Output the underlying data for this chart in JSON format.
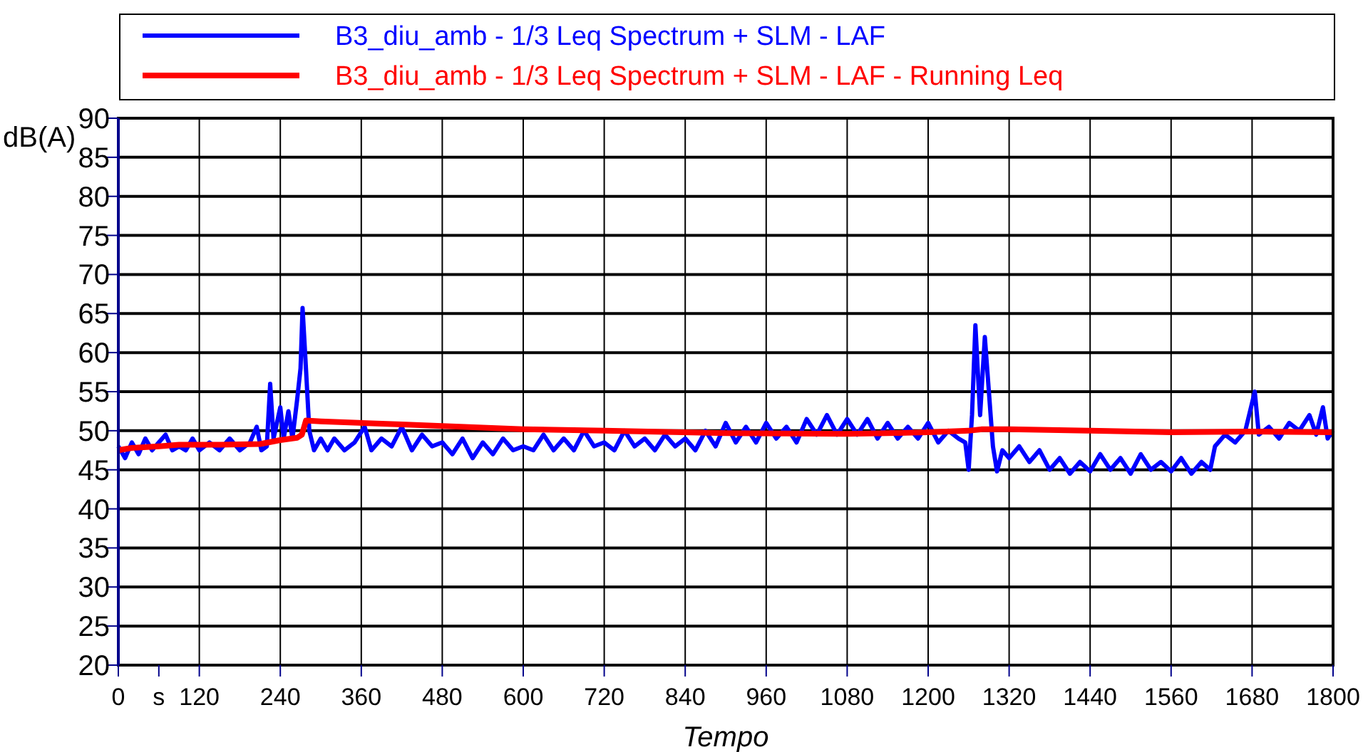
{
  "chart_data": {
    "type": "line",
    "xlabel": "Tempo",
    "ylabel": "dB(A)",
    "xlim": [
      0,
      1800
    ],
    "xticks": [
      0,
      {
        "value": 60,
        "label": "s"
      },
      120,
      240,
      360,
      480,
      600,
      720,
      840,
      960,
      1080,
      1200,
      1320,
      1440,
      1560,
      1680,
      1800
    ],
    "ylim": [
      20,
      90
    ],
    "yticks": [
      20,
      25,
      30,
      35,
      40,
      45,
      50,
      55,
      60,
      65,
      70,
      75,
      80,
      85,
      90
    ],
    "grid": true,
    "legend": "top",
    "line_style": "solid",
    "marker": "none",
    "series": [
      {
        "name": "B3_diu_amb - 1/3 Leq Spectrum + SLM - LAF",
        "color": "#0000ff",
        "x": [
          0,
          10,
          20,
          30,
          40,
          50,
          60,
          70,
          80,
          90,
          100,
          110,
          120,
          135,
          150,
          165,
          180,
          195,
          205,
          212,
          220,
          225,
          230,
          240,
          245,
          252,
          258,
          265,
          270,
          273,
          278,
          283,
          290,
          300,
          310,
          320,
          335,
          350,
          365,
          375,
          390,
          405,
          420,
          435,
          450,
          465,
          480,
          495,
          510,
          525,
          540,
          555,
          570,
          585,
          600,
          615,
          630,
          645,
          660,
          675,
          690,
          705,
          720,
          735,
          750,
          765,
          780,
          795,
          810,
          825,
          840,
          855,
          870,
          885,
          900,
          915,
          930,
          945,
          960,
          975,
          990,
          1005,
          1020,
          1035,
          1050,
          1065,
          1080,
          1095,
          1110,
          1125,
          1140,
          1155,
          1170,
          1185,
          1200,
          1215,
          1230,
          1245,
          1255,
          1260,
          1265,
          1270,
          1277,
          1284,
          1290,
          1296,
          1302,
          1310,
          1320,
          1335,
          1350,
          1365,
          1380,
          1395,
          1410,
          1425,
          1440,
          1455,
          1470,
          1485,
          1500,
          1515,
          1530,
          1545,
          1560,
          1575,
          1590,
          1605,
          1618,
          1625,
          1640,
          1655,
          1670,
          1684,
          1690,
          1705,
          1720,
          1735,
          1750,
          1765,
          1775,
          1785,
          1792,
          1800
        ],
        "values": [
          48,
          46.5,
          48.5,
          47,
          49,
          47.5,
          48.5,
          49.5,
          47.5,
          48,
          47.5,
          49,
          47.5,
          48.5,
          47.5,
          49,
          47.5,
          48.5,
          50.5,
          47.5,
          48,
          56,
          49,
          53,
          49,
          52.5,
          49,
          54,
          58,
          65.7,
          58,
          50,
          47.5,
          49,
          47.5,
          49,
          47.5,
          48.5,
          50.5,
          47.5,
          49,
          48,
          50.5,
          47.5,
          49.5,
          48,
          48.5,
          47,
          49,
          46.5,
          48.5,
          47,
          49,
          47.5,
          48,
          47.5,
          49.5,
          47.5,
          49,
          47.5,
          50,
          48,
          48.5,
          47.5,
          50,
          48,
          49,
          47.5,
          49.5,
          48,
          49,
          47.5,
          50,
          48,
          51,
          48.5,
          50.5,
          48.5,
          51,
          49,
          50.5,
          48.5,
          51.5,
          49.5,
          52,
          49.5,
          51.5,
          49.5,
          51.5,
          49,
          51,
          49,
          50.5,
          49,
          51,
          48.5,
          50,
          49,
          48.5,
          45,
          52,
          63.5,
          52,
          62,
          55,
          48,
          44.8,
          47.5,
          46.5,
          48,
          46,
          47.5,
          45,
          46.5,
          44.5,
          46,
          44.8,
          47,
          45,
          46.5,
          44.5,
          47,
          45,
          46,
          44.8,
          46.5,
          44.5,
          46,
          45,
          48,
          49.5,
          48.5,
          50,
          55,
          49.5,
          50.5,
          49,
          51,
          50,
          52,
          49.5,
          53,
          49,
          50
        ]
      },
      {
        "name": "B3_diu_amb - 1/3 Leq Spectrum + SLM - LAF - Running Leq",
        "color": "#ff0000",
        "x": [
          0,
          20,
          60,
          90,
          150,
          210,
          240,
          265,
          272,
          278,
          300,
          420,
          600,
          720,
          900,
          1080,
          1200,
          1260,
          1280,
          1320,
          1440,
          1560,
          1680,
          1800
        ],
        "values": [
          47.5,
          47.8,
          48,
          48.2,
          48.2,
          48.3,
          48.8,
          49.1,
          49.5,
          51.3,
          51.2,
          50.8,
          50.2,
          50,
          49.7,
          49.6,
          49.8,
          50,
          50.2,
          50.2,
          50,
          49.8,
          49.9,
          49.8
        ]
      }
    ]
  }
}
